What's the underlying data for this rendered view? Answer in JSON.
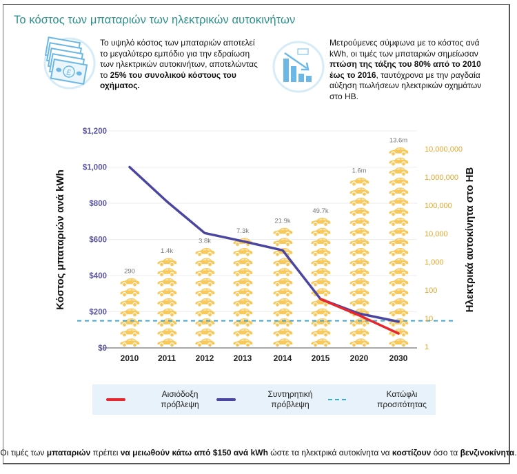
{
  "title": "Το κόστος των μπαταριών των ηλεκτρικών αυτοκινήτων",
  "intro_left": {
    "icon": "banknotes-icon",
    "text_parts": [
      {
        "text": "Το υψηλό κόστος των μπαταριών αποτελεί το μεγαλύτερο εμπόδιο για την εδραίωση των ηλεκτρικών αυτοκινήτων, αποτελώντας το ",
        "bold": false
      },
      {
        "text": "25% του συνολικού κόστους του οχήματος.",
        "bold": true
      }
    ]
  },
  "intro_right": {
    "icon": "declining-bar-chart-icon",
    "text_parts": [
      {
        "text": "Μετρούμενες σύμφωνα με το κόστος ανά kWh, οι τιμές των μπαταριών σημείωσαν ",
        "bold": false
      },
      {
        "text": "πτώση της τάξης του 80% από το 2010 έως το 2016",
        "bold": true
      },
      {
        "text": ", ταυτόχρονα με την ραγδαία αύξηση πωλήσεων ηλεκτρικών οχημάτων στο ΗΒ.",
        "bold": false
      }
    ]
  },
  "chart_data": {
    "type": "line",
    "title": "",
    "categories": [
      "2010",
      "2011",
      "2012",
      "2013",
      "2014",
      "2015",
      "2020",
      "2030"
    ],
    "ylabel": "Κόστος μπαταριών ανά kWh",
    "y2label": "Ηλεκτρικά αυτοκίνητα στο ΗΒ",
    "ylim": [
      0,
      1200
    ],
    "yticks": [
      "$0",
      "$200",
      "$400",
      "$600",
      "$800",
      "$1,000",
      "$1,200"
    ],
    "ytick_values": [
      0,
      200,
      400,
      600,
      800,
      1000,
      1200
    ],
    "y2_scale": "log",
    "y2lim": [
      1,
      10000000
    ],
    "y2ticks": [
      "1",
      "10",
      "100",
      "1,000",
      "10,000",
      "100,000",
      "1,000,000",
      "10,000,000"
    ],
    "grid": true,
    "series": [
      {
        "name": "Αισιόδοξη πρόβλεψη",
        "color": "#e8262d",
        "values": [
          null,
          null,
          null,
          null,
          null,
          270,
          180,
          80
        ]
      },
      {
        "name": "Συντηρητική πρόβλεψη",
        "color": "#4a45a0",
        "values": [
          1000,
          810,
          635,
          590,
          540,
          270,
          190,
          145
        ]
      }
    ],
    "threshold": {
      "name": "Κατώφλι προσιτότητας",
      "value": 150,
      "color": "#3ba9d6"
    },
    "ev_pictogram": {
      "name": "Ηλεκτρικά αυτοκίνητα στο ΗΒ",
      "color": "#f8c85a",
      "labels": [
        "290",
        "1.4k",
        "3.8k",
        "7.3k",
        "21.9k",
        "49.7k",
        "1.6m",
        "13.6m"
      ],
      "values": [
        290,
        1400,
        3800,
        7300,
        21900,
        49700,
        1600000,
        13600000
      ],
      "car_icon_counts": [
        7,
        9,
        10,
        11,
        12,
        13,
        17,
        20
      ]
    },
    "legend_position": "bottom"
  },
  "legend": [
    {
      "label": "Αισιόδοξη πρόβλεψη",
      "type": "line",
      "color": "#e8262d"
    },
    {
      "label": "Συντηρητική πρόβλεψη",
      "type": "line",
      "color": "#4a45a0"
    },
    {
      "label": "Κατώφλι προσιτότητας",
      "type": "dashed",
      "color": "#3ba9d6"
    }
  ],
  "footer": {
    "parts": [
      {
        "text": "Οι τιμές των ",
        "bold": false
      },
      {
        "text": "μπαταριών",
        "bold": true
      },
      {
        "text": " πρέπει ",
        "bold": false
      },
      {
        "text": "να μειωθούν κάτω από $150 ανά kWh",
        "bold": true
      },
      {
        "text": " ώστε τα ηλεκτρικά αυτοκίνητα να ",
        "bold": false
      },
      {
        "text": "κοστίζουν",
        "bold": true
      },
      {
        "text": " όσο τα ",
        "bold": false
      },
      {
        "text": "βενζινοκίνητα",
        "bold": true
      },
      {
        "text": ".",
        "bold": false
      }
    ]
  },
  "colors": {
    "title": "#2a8f8a",
    "left_axis": "#5a56a0",
    "right_axis": "#e0a62a",
    "car": "#f8c85a",
    "icon": "#6bb8e6"
  }
}
